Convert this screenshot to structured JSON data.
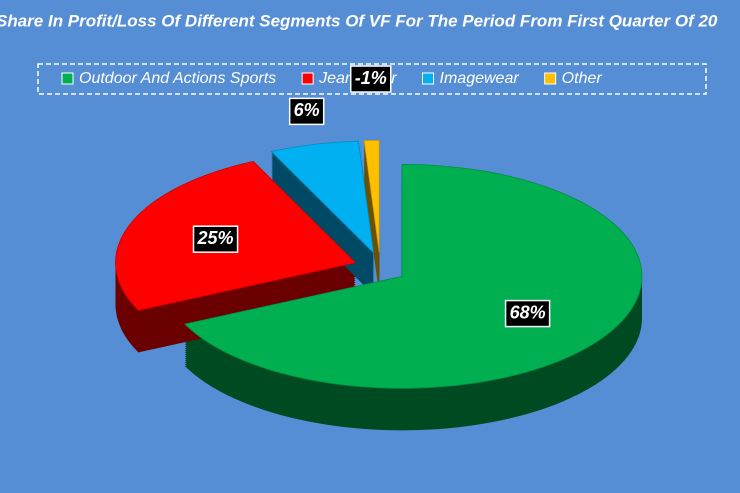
{
  "chart_data": {
    "type": "pie3d",
    "title": "Share In Profit/Loss  Of Different Segments Of VF For The Period From First Quarter Of 20",
    "categories": [
      "Outdoor And Actions Sports",
      "Jeanswear",
      "Imagewear",
      "Other"
    ],
    "values": [
      68,
      25,
      6,
      -1
    ],
    "value_labels": [
      "68%",
      "25%",
      "6%",
      "-1%"
    ],
    "colors": [
      "#00b050",
      "#ff0000",
      "#00b0f0",
      "#ffc000"
    ],
    "legend": "top"
  }
}
